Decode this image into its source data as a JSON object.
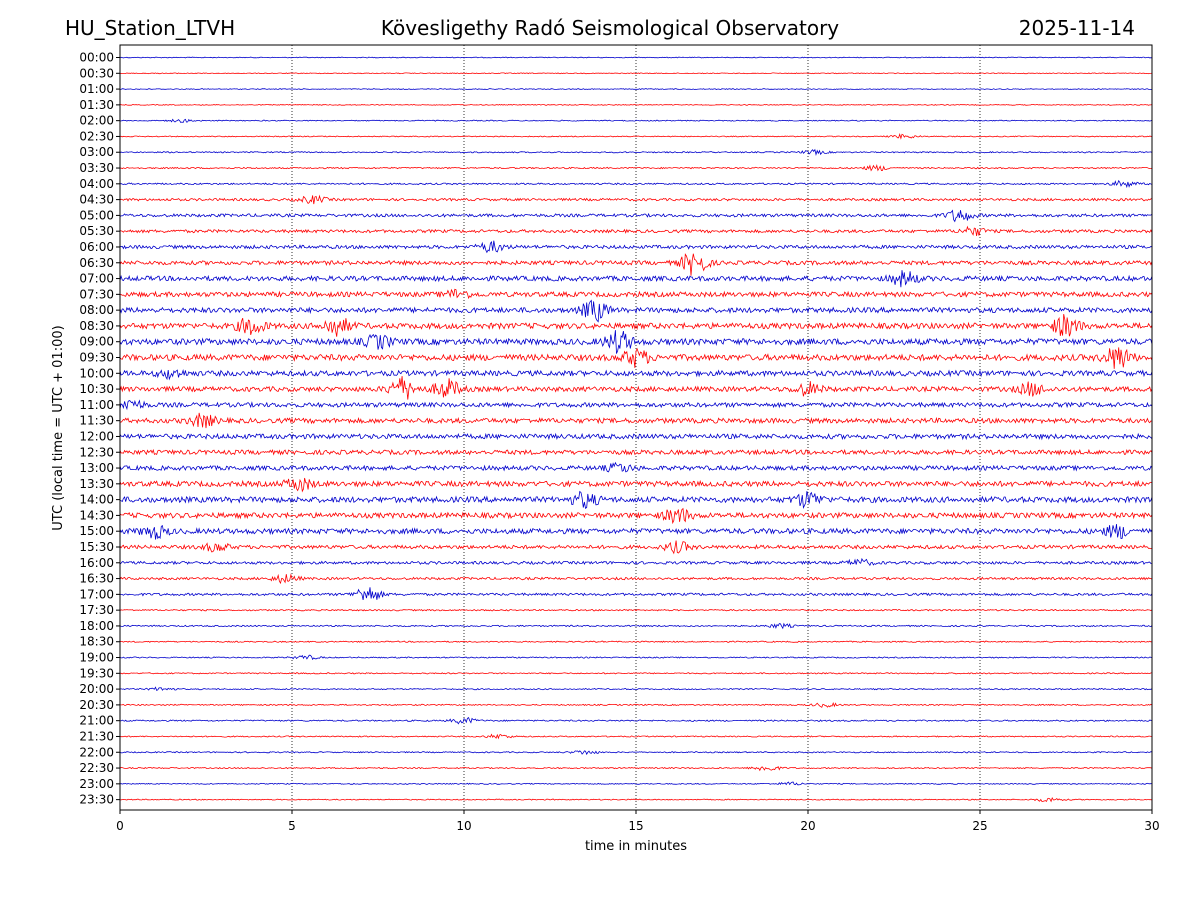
{
  "header": {
    "station": "HU_Station_LTVH",
    "observatory": "Kövesligethy Radó Seismological Observatory",
    "date": "2025-11-14"
  },
  "chart_data": {
    "type": "line",
    "title": "Kövesligethy Radó Seismological Observatory",
    "xlabel": "time in minutes",
    "ylabel": "UTC (local time = UTC + 01:00)",
    "xlim": [
      0,
      30
    ],
    "x_ticks": [
      "0",
      "5",
      "10",
      "15",
      "20",
      "25",
      "30"
    ],
    "grid": "vertical dotted at x ticks",
    "colors": {
      "even_rows": "#0000cc",
      "odd_rows": "#ff0000"
    },
    "rows": [
      {
        "label": "00:00",
        "amp": 0.4,
        "events": []
      },
      {
        "label": "00:30",
        "amp": 0.4,
        "events": []
      },
      {
        "label": "01:00",
        "amp": 0.4,
        "events": []
      },
      {
        "label": "01:30",
        "amp": 0.4,
        "events": []
      },
      {
        "label": "02:00",
        "amp": 0.5,
        "events": [
          {
            "t": 1.8,
            "a": 1.5
          }
        ]
      },
      {
        "label": "02:30",
        "amp": 0.5,
        "events": [
          {
            "t": 22.8,
            "a": 2
          }
        ]
      },
      {
        "label": "03:00",
        "amp": 0.6,
        "events": [
          {
            "t": 20.2,
            "a": 2
          }
        ]
      },
      {
        "label": "03:30",
        "amp": 0.7,
        "events": [
          {
            "t": 22.0,
            "a": 2.5
          }
        ]
      },
      {
        "label": "04:00",
        "amp": 0.8,
        "events": [
          {
            "t": 29.2,
            "a": 3
          }
        ]
      },
      {
        "label": "04:30",
        "amp": 1.2,
        "events": [
          {
            "t": 5.6,
            "a": 3.5
          }
        ]
      },
      {
        "label": "05:00",
        "amp": 1.5,
        "events": [
          {
            "t": 24.4,
            "a": 6
          }
        ]
      },
      {
        "label": "05:30",
        "amp": 1.5,
        "events": [
          {
            "t": 24.8,
            "a": 4
          }
        ]
      },
      {
        "label": "06:00",
        "amp": 1.7,
        "events": [
          {
            "t": 10.8,
            "a": 5
          }
        ]
      },
      {
        "label": "06:30",
        "amp": 2.0,
        "events": [
          {
            "t": 16.7,
            "a": 12
          }
        ]
      },
      {
        "label": "07:00",
        "amp": 2.4,
        "events": [
          {
            "t": 22.8,
            "a": 7
          }
        ]
      },
      {
        "label": "07:30",
        "amp": 2.4,
        "events": [
          {
            "t": 9.8,
            "a": 4
          }
        ]
      },
      {
        "label": "08:00",
        "amp": 2.5,
        "events": [
          {
            "t": 13.8,
            "a": 10
          }
        ]
      },
      {
        "label": "08:30",
        "amp": 2.8,
        "events": [
          {
            "t": 3.8,
            "a": 8
          },
          {
            "t": 6.3,
            "a": 9
          },
          {
            "t": 27.5,
            "a": 10
          }
        ]
      },
      {
        "label": "09:00",
        "amp": 3.0,
        "events": [
          {
            "t": 14.5,
            "a": 10
          },
          {
            "t": 7.5,
            "a": 6
          }
        ]
      },
      {
        "label": "09:30",
        "amp": 3.0,
        "events": [
          {
            "t": 15.0,
            "a": 8
          },
          {
            "t": 29.0,
            "a": 11
          }
        ]
      },
      {
        "label": "10:00",
        "amp": 2.6,
        "events": [
          {
            "t": 1.5,
            "a": 4
          }
        ]
      },
      {
        "label": "10:30",
        "amp": 2.4,
        "events": [
          {
            "t": 8.2,
            "a": 11
          },
          {
            "t": 9.5,
            "a": 9
          },
          {
            "t": 20.0,
            "a": 6
          },
          {
            "t": 26.5,
            "a": 6
          }
        ]
      },
      {
        "label": "11:00",
        "amp": 2.2,
        "events": [
          {
            "t": 0.3,
            "a": 5
          }
        ]
      },
      {
        "label": "11:30",
        "amp": 2.4,
        "events": [
          {
            "t": 2.4,
            "a": 6
          }
        ]
      },
      {
        "label": "12:00",
        "amp": 2.4,
        "events": []
      },
      {
        "label": "12:30",
        "amp": 2.2,
        "events": []
      },
      {
        "label": "13:00",
        "amp": 2.2,
        "events": [
          {
            "t": 14.5,
            "a": 4
          }
        ]
      },
      {
        "label": "13:30",
        "amp": 2.6,
        "events": [
          {
            "t": 5.2,
            "a": 6
          }
        ]
      },
      {
        "label": "14:00",
        "amp": 2.8,
        "events": [
          {
            "t": 13.5,
            "a": 7
          },
          {
            "t": 20.0,
            "a": 7
          }
        ]
      },
      {
        "label": "14:30",
        "amp": 2.6,
        "events": [
          {
            "t": 16.2,
            "a": 7
          }
        ]
      },
      {
        "label": "15:00",
        "amp": 2.6,
        "events": [
          {
            "t": 1.0,
            "a": 6
          },
          {
            "t": 29.0,
            "a": 6
          }
        ]
      },
      {
        "label": "15:30",
        "amp": 1.8,
        "events": [
          {
            "t": 2.8,
            "a": 4
          },
          {
            "t": 16.2,
            "a": 5
          }
        ]
      },
      {
        "label": "16:00",
        "amp": 1.4,
        "events": [
          {
            "t": 21.5,
            "a": 3
          }
        ]
      },
      {
        "label": "16:30",
        "amp": 1.2,
        "events": [
          {
            "t": 4.8,
            "a": 4
          }
        ]
      },
      {
        "label": "17:00",
        "amp": 1.2,
        "events": [
          {
            "t": 7.2,
            "a": 8
          }
        ]
      },
      {
        "label": "17:30",
        "amp": 0.7,
        "events": []
      },
      {
        "label": "18:00",
        "amp": 0.7,
        "events": [
          {
            "t": 19.2,
            "a": 2
          }
        ]
      },
      {
        "label": "18:30",
        "amp": 0.6,
        "events": []
      },
      {
        "label": "19:00",
        "amp": 0.6,
        "events": [
          {
            "t": 5.4,
            "a": 2
          }
        ]
      },
      {
        "label": "19:30",
        "amp": 0.6,
        "events": []
      },
      {
        "label": "20:00",
        "amp": 0.6,
        "events": [
          {
            "t": 1.2,
            "a": 1.5
          }
        ]
      },
      {
        "label": "20:30",
        "amp": 0.6,
        "events": [
          {
            "t": 20.5,
            "a": 2
          }
        ]
      },
      {
        "label": "21:00",
        "amp": 0.7,
        "events": [
          {
            "t": 10.0,
            "a": 3
          }
        ]
      },
      {
        "label": "21:30",
        "amp": 0.6,
        "events": [
          {
            "t": 11.0,
            "a": 2
          }
        ]
      },
      {
        "label": "22:00",
        "amp": 0.6,
        "events": [
          {
            "t": 13.5,
            "a": 2
          }
        ]
      },
      {
        "label": "22:30",
        "amp": 0.6,
        "events": [
          {
            "t": 18.8,
            "a": 3
          }
        ]
      },
      {
        "label": "23:00",
        "amp": 0.5,
        "events": [
          {
            "t": 19.5,
            "a": 1.5
          }
        ]
      },
      {
        "label": "23:30",
        "amp": 0.5,
        "events": [
          {
            "t": 27.0,
            "a": 2
          }
        ]
      }
    ]
  }
}
